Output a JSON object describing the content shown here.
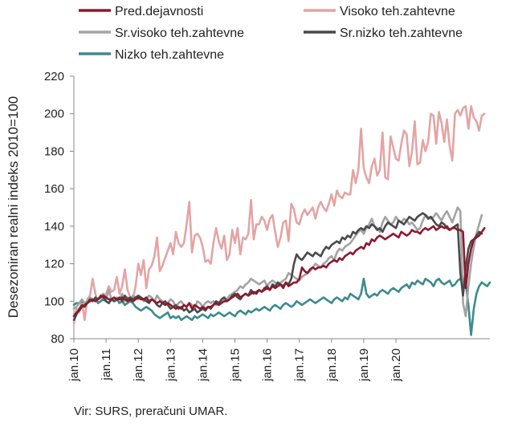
{
  "chart_data": {
    "type": "line",
    "title": "",
    "xlabel": "",
    "ylabel": "Desezoniran realni indeks 2010=100",
    "ylim": [
      80,
      220
    ],
    "yticks": [
      80,
      100,
      120,
      140,
      160,
      180,
      200,
      220
    ],
    "x_start": "jan.10",
    "x_ticks": [
      "jan.10",
      "jan.11",
      "jan.12",
      "jan.13",
      "jan.14",
      "jan.15",
      "jan.16",
      "jan.17",
      "jan.18",
      "jan.19",
      "jan.20"
    ],
    "grid": "none",
    "legend_position": "top",
    "series": [
      {
        "name": "Pred.dejavnosti",
        "color": "#8b1a2f",
        "values": [
          92,
          94,
          95,
          97,
          98,
          99,
          100,
          101,
          100,
          101,
          102,
          103,
          102,
          101,
          101,
          102,
          101,
          101,
          102,
          101,
          100,
          101,
          100,
          101,
          102,
          101,
          101,
          102,
          100,
          101,
          100,
          99,
          100,
          99,
          98,
          99,
          98,
          97,
          96,
          97,
          96,
          98,
          97,
          99,
          96,
          98,
          97,
          96,
          97,
          96,
          97,
          97,
          98,
          99,
          98,
          99,
          100,
          100,
          101,
          102,
          103,
          104,
          102,
          103,
          104,
          103,
          104,
          105,
          104,
          106,
          105,
          106,
          107,
          106,
          108,
          107,
          108,
          109,
          107,
          110,
          108,
          109,
          110,
          110,
          112,
          118,
          116,
          115,
          117,
          118,
          117,
          118,
          118,
          119,
          118,
          120,
          121,
          122,
          121,
          123,
          122,
          124,
          125,
          126,
          125,
          127,
          128,
          129,
          128,
          131,
          130,
          133,
          132,
          134,
          135,
          134,
          133,
          134,
          135,
          136,
          135,
          134,
          137,
          136,
          135,
          136,
          138,
          137,
          137,
          136,
          138,
          139,
          138,
          139,
          140,
          138,
          139,
          140,
          139,
          140,
          138,
          139,
          139,
          138,
          138,
          137,
          107,
          120,
          128,
          133,
          134,
          135,
          137,
          139
        ]
      },
      {
        "name": "Visoko teh.zahtevne",
        "color": "#e3a4a4",
        "values": [
          88,
          96,
          94,
          100,
          90,
          101,
          103,
          112,
          104,
          99,
          100,
          102,
          104,
          108,
          105,
          106,
          113,
          104,
          108,
          117,
          106,
          102,
          101,
          108,
          120,
          114,
          122,
          107,
          117,
          119,
          124,
          134,
          116,
          119,
          123,
          127,
          131,
          125,
          137,
          131,
          129,
          131,
          141,
          153,
          126,
          135,
          136,
          134,
          129,
          121,
          122,
          120,
          131,
          139,
          132,
          128,
          135,
          122,
          125,
          138,
          131,
          139,
          125,
          134,
          133,
          136,
          154,
          133,
          141,
          141,
          145,
          143,
          138,
          144,
          146,
          137,
          129,
          134,
          142,
          143,
          132,
          152,
          149,
          142,
          141,
          146,
          149,
          146,
          148,
          150,
          144,
          150,
          153,
          150,
          148,
          152,
          157,
          151,
          159,
          156,
          155,
          158,
          157,
          157,
          170,
          163,
          170,
          192,
          171,
          166,
          163,
          172,
          176,
          167,
          170,
          190,
          166,
          165,
          188,
          182,
          176,
          175,
          184,
          191,
          189,
          172,
          180,
          196,
          173,
          174,
          186,
          180,
          185,
          200,
          199,
          184,
          201,
          195,
          185,
          197,
          183,
          175,
          200,
          202,
          199,
          203,
          204,
          192,
          204,
          198,
          196,
          191,
          199,
          200
        ]
      },
      {
        "name": "Sr.visoko teh.zahtevne",
        "color": "#a3a3a3",
        "values": [
          96,
          97,
          99,
          101,
          99,
          100,
          102,
          101,
          100,
          101,
          103,
          104,
          101,
          106,
          101,
          100,
          102,
          101,
          104,
          100,
          102,
          101,
          103,
          102,
          101,
          102,
          100,
          101,
          103,
          102,
          100,
          103,
          101,
          100,
          98,
          99,
          101,
          100,
          97,
          99,
          100,
          98,
          97,
          99,
          98,
          96,
          100,
          99,
          97,
          99,
          100,
          99,
          100,
          98,
          99,
          100,
          102,
          101,
          103,
          104,
          105,
          106,
          108,
          107,
          109,
          110,
          112,
          111,
          110,
          109,
          110,
          111,
          108,
          110,
          111,
          110,
          109,
          110,
          111,
          112,
          115,
          114,
          113,
          112,
          111,
          113,
          114,
          115,
          116,
          118,
          120,
          119,
          118,
          120,
          121,
          123,
          124,
          122,
          126,
          128,
          127,
          129,
          130,
          131,
          133,
          135,
          137,
          138,
          136,
          139,
          141,
          144,
          140,
          139,
          137,
          142,
          145,
          143,
          141,
          142,
          145,
          143,
          142,
          144,
          143,
          141,
          142,
          140,
          138,
          139,
          143,
          146,
          145,
          144,
          145,
          147,
          145,
          143,
          146,
          148,
          145,
          142,
          146,
          150,
          148,
          99,
          92,
          108,
          120,
          129,
          136,
          141,
          146
        ]
      },
      {
        "name": "Sr.nizko teh.zahtevne",
        "color": "#4a4a4a",
        "values": [
          90,
          93,
          96,
          98,
          97,
          99,
          101,
          100,
          102,
          101,
          103,
          102,
          100,
          99,
          101,
          100,
          101,
          102,
          100,
          103,
          101,
          102,
          101,
          102,
          103,
          102,
          101,
          100,
          99,
          101,
          100,
          98,
          97,
          99,
          100,
          98,
          96,
          97,
          98,
          96,
          97,
          95,
          96,
          94,
          95,
          96,
          94,
          95,
          96,
          95,
          97,
          96,
          98,
          100,
          99,
          101,
          102,
          100,
          101,
          103,
          104,
          102,
          101,
          103,
          104,
          103,
          106,
          104,
          105,
          106,
          105,
          107,
          108,
          106,
          109,
          108,
          110,
          109,
          108,
          110,
          109,
          112,
          120,
          125,
          123,
          122,
          124,
          126,
          125,
          124,
          126,
          125,
          124,
          127,
          129,
          128,
          130,
          131,
          132,
          131,
          134,
          133,
          135,
          134,
          137,
          136,
          138,
          139,
          138,
          140,
          139,
          141,
          140,
          138,
          139,
          137,
          140,
          142,
          141,
          140,
          139,
          143,
          142,
          141,
          143,
          145,
          144,
          143,
          145,
          146,
          147,
          146,
          144,
          145,
          143,
          141,
          140,
          142,
          141,
          139,
          138,
          139,
          140,
          141,
          115,
          103,
          118,
          128,
          132,
          133,
          135,
          137,
          136
        ]
      },
      {
        "name": "Nizko teh.zahtevne",
        "color": "#3c8a8e",
        "values": [
          98,
          99,
          99,
          100,
          99,
          100,
          101,
          100,
          101,
          99,
          100,
          101,
          100,
          99,
          101,
          100,
          101,
          99,
          100,
          98,
          99,
          100,
          99,
          97,
          96,
          95,
          96,
          97,
          96,
          95,
          93,
          92,
          91,
          92,
          93,
          94,
          91,
          92,
          91,
          92,
          90,
          91,
          92,
          91,
          90,
          92,
          91,
          92,
          93,
          92,
          91,
          93,
          92,
          93,
          94,
          93,
          92,
          93,
          94,
          93,
          92,
          94,
          95,
          94,
          93,
          95,
          94,
          95,
          96,
          95,
          96,
          97,
          96,
          95,
          97,
          98,
          97,
          96,
          98,
          99,
          98,
          97,
          98,
          100,
          99,
          98,
          99,
          100,
          101,
          100,
          99,
          100,
          101,
          102,
          101,
          100,
          99,
          101,
          102,
          101,
          100,
          102,
          101,
          104,
          103,
          102,
          101,
          104,
          112,
          104,
          102,
          103,
          104,
          103,
          105,
          106,
          105,
          104,
          106,
          107,
          106,
          105,
          107,
          108,
          109,
          107,
          110,
          109,
          111,
          110,
          109,
          112,
          111,
          110,
          108,
          111,
          112,
          110,
          109,
          110,
          111,
          108,
          109,
          111,
          112,
          111,
          110,
          98,
          82,
          96,
          104,
          108,
          110,
          109,
          108,
          110
        ]
      }
    ]
  },
  "source": "Vir: SURS, preračuni UMAR."
}
